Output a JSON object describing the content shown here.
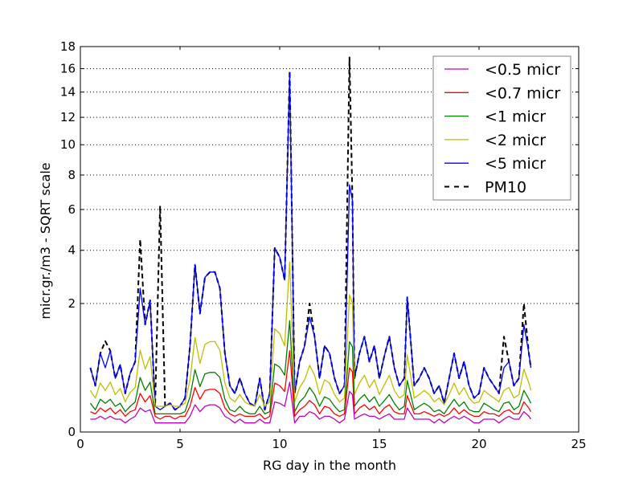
{
  "chart_data": {
    "type": "line",
    "title": "",
    "xlabel": "RG day in the month",
    "ylabel": "micr.gr./m3 - SQRT scale",
    "xlim": [
      0,
      25
    ],
    "ylim": [
      0,
      18
    ],
    "yscale": "sqrt",
    "grid": "y-dotted",
    "legend_position": "top-right",
    "xticks": [
      "0",
      "5",
      "10",
      "15",
      "20",
      "25"
    ],
    "yticks": [
      "0",
      "2",
      "4",
      "6",
      "8",
      "10",
      "12",
      "14",
      "16",
      "18"
    ],
    "x": [
      0.5,
      0.75,
      1,
      1.25,
      1.5,
      1.75,
      2,
      2.25,
      2.5,
      2.75,
      3,
      3.25,
      3.5,
      3.75,
      4,
      4.25,
      4.5,
      4.75,
      5,
      5.25,
      5.5,
      5.75,
      6,
      6.25,
      6.5,
      6.75,
      7,
      7.25,
      7.5,
      7.75,
      8,
      8.25,
      8.5,
      8.75,
      9,
      9.25,
      9.5,
      9.75,
      10,
      10.25,
      10.5,
      10.75,
      11,
      11.25,
      11.5,
      11.75,
      12,
      12.25,
      12.5,
      12.75,
      13,
      13.25,
      13.5,
      13.65,
      13.75,
      14,
      14.25,
      14.5,
      14.75,
      15,
      15.25,
      15.5,
      15.75,
      16,
      16.25,
      16.4,
      16.75,
      17,
      17.25,
      17.5,
      17.75,
      18,
      18.25,
      18.5,
      18.75,
      19,
      19.25,
      19.5,
      19.75,
      20,
      20.25,
      20.5,
      20.75,
      21,
      21.25,
      21.5,
      21.75,
      22,
      22.25,
      22.5,
      22.6
    ],
    "series": [
      {
        "name": "<0.5 micr",
        "color": "#bf00bf",
        "dash": false,
        "values": [
          0.02,
          0.02,
          0.03,
          0.02,
          0.03,
          0.02,
          0.02,
          0.01,
          0.02,
          0.03,
          0.07,
          0.05,
          0.06,
          0.01,
          0.01,
          0.01,
          0.01,
          0.01,
          0.01,
          0.01,
          0.03,
          0.09,
          0.05,
          0.08,
          0.09,
          0.09,
          0.07,
          0.03,
          0.02,
          0.01,
          0.02,
          0.01,
          0.01,
          0.01,
          0.02,
          0.01,
          0.01,
          0.11,
          0.1,
          0.08,
          0.3,
          0.01,
          0.03,
          0.03,
          0.05,
          0.04,
          0.02,
          0.03,
          0.03,
          0.02,
          0.01,
          0.02,
          0.2,
          0.17,
          0.02,
          0.03,
          0.04,
          0.03,
          0.03,
          0.02,
          0.03,
          0.04,
          0.02,
          0.02,
          0.02,
          0.07,
          0.02,
          0.02,
          0.02,
          0.02,
          0.01,
          0.02,
          0.01,
          0.02,
          0.03,
          0.02,
          0.03,
          0.02,
          0.01,
          0.01,
          0.02,
          0.02,
          0.02,
          0.01,
          0.02,
          0.03,
          0.02,
          0.02,
          0.05,
          0.03,
          0.02
        ]
      },
      {
        "name": "<0.7 micr",
        "color": "#ff0000",
        "dash": false,
        "values": [
          0.05,
          0.04,
          0.07,
          0.05,
          0.07,
          0.04,
          0.06,
          0.03,
          0.05,
          0.06,
          0.18,
          0.11,
          0.16,
          0.03,
          0.02,
          0.03,
          0.03,
          0.02,
          0.03,
          0.03,
          0.08,
          0.24,
          0.13,
          0.21,
          0.22,
          0.22,
          0.18,
          0.07,
          0.04,
          0.03,
          0.04,
          0.03,
          0.03,
          0.03,
          0.04,
          0.02,
          0.03,
          0.29,
          0.26,
          0.2,
          0.8,
          0.03,
          0.06,
          0.08,
          0.12,
          0.09,
          0.04,
          0.08,
          0.07,
          0.04,
          0.03,
          0.04,
          0.5,
          0.44,
          0.04,
          0.07,
          0.09,
          0.06,
          0.08,
          0.04,
          0.07,
          0.09,
          0.05,
          0.04,
          0.04,
          0.16,
          0.04,
          0.04,
          0.05,
          0.04,
          0.03,
          0.04,
          0.03,
          0.04,
          0.07,
          0.04,
          0.06,
          0.04,
          0.03,
          0.03,
          0.05,
          0.04,
          0.04,
          0.03,
          0.05,
          0.06,
          0.04,
          0.04,
          0.11,
          0.07,
          0.05
        ]
      },
      {
        "name": "<1 micr",
        "color": "#008000",
        "dash": false,
        "values": [
          0.1,
          0.06,
          0.13,
          0.1,
          0.13,
          0.08,
          0.1,
          0.05,
          0.08,
          0.11,
          0.36,
          0.21,
          0.3,
          0.04,
          0.04,
          0.04,
          0.04,
          0.04,
          0.04,
          0.05,
          0.15,
          0.47,
          0.25,
          0.41,
          0.43,
          0.43,
          0.36,
          0.13,
          0.06,
          0.05,
          0.08,
          0.05,
          0.04,
          0.04,
          0.08,
          0.04,
          0.05,
          0.56,
          0.51,
          0.39,
          1.5,
          0.05,
          0.11,
          0.15,
          0.24,
          0.17,
          0.08,
          0.15,
          0.13,
          0.08,
          0.05,
          0.06,
          0.99,
          0.88,
          0.08,
          0.13,
          0.17,
          0.11,
          0.15,
          0.08,
          0.12,
          0.17,
          0.1,
          0.06,
          0.08,
          0.32,
          0.06,
          0.08,
          0.1,
          0.08,
          0.05,
          0.06,
          0.04,
          0.08,
          0.13,
          0.08,
          0.11,
          0.06,
          0.05,
          0.05,
          0.1,
          0.08,
          0.06,
          0.05,
          0.1,
          0.11,
          0.06,
          0.08,
          0.21,
          0.13,
          0.1
        ]
      },
      {
        "name": "<2 micr",
        "color": "#bfbf00",
        "dash": false,
        "values": [
          0.21,
          0.14,
          0.29,
          0.21,
          0.3,
          0.17,
          0.23,
          0.11,
          0.19,
          0.24,
          0.81,
          0.48,
          0.69,
          0.08,
          0.08,
          0.08,
          0.09,
          0.08,
          0.08,
          0.1,
          0.33,
          1.08,
          0.57,
          0.93,
          0.99,
          0.99,
          0.81,
          0.29,
          0.14,
          0.11,
          0.17,
          0.11,
          0.09,
          0.08,
          0.17,
          0.08,
          0.11,
          1.29,
          1.17,
          0.9,
          3.5,
          0.11,
          0.24,
          0.33,
          0.54,
          0.39,
          0.17,
          0.33,
          0.29,
          0.17,
          0.11,
          0.14,
          2.28,
          2.01,
          0.17,
          0.29,
          0.39,
          0.24,
          0.33,
          0.17,
          0.27,
          0.39,
          0.21,
          0.14,
          0.17,
          0.72,
          0.14,
          0.17,
          0.21,
          0.17,
          0.11,
          0.14,
          0.09,
          0.17,
          0.29,
          0.17,
          0.24,
          0.14,
          0.1,
          0.11,
          0.21,
          0.17,
          0.14,
          0.11,
          0.21,
          0.24,
          0.14,
          0.17,
          0.48,
          0.29,
          0.21
        ]
      },
      {
        "name": "<5 micr",
        "color": "#0000ff",
        "dash": false,
        "values": [
          0.5,
          0.26,
          0.75,
          0.5,
          0.8,
          0.35,
          0.55,
          0.18,
          0.42,
          0.6,
          2.5,
          1.4,
          2.1,
          0.08,
          0.06,
          0.08,
          0.1,
          0.06,
          0.08,
          0.14,
          0.9,
          3.4,
          1.7,
          2.9,
          3.1,
          3.1,
          2.5,
          0.75,
          0.26,
          0.18,
          0.35,
          0.18,
          0.1,
          0.08,
          0.35,
          0.06,
          0.18,
          4.1,
          3.7,
          2.8,
          15.5,
          0.18,
          0.6,
          0.9,
          1.6,
          1.1,
          0.35,
          0.9,
          0.75,
          0.35,
          0.18,
          0.26,
          7.4,
          6.5,
          0.35,
          0.75,
          1.1,
          0.6,
          0.9,
          0.35,
          0.7,
          1.1,
          0.5,
          0.26,
          0.35,
          2.2,
          0.26,
          0.35,
          0.5,
          0.35,
          0.18,
          0.26,
          0.1,
          0.35,
          0.75,
          0.35,
          0.6,
          0.26,
          0.14,
          0.18,
          0.5,
          0.35,
          0.26,
          0.18,
          0.5,
          0.6,
          0.26,
          0.35,
          1.4,
          0.75,
          0.5
        ]
      },
      {
        "name": "PM10",
        "color": "#000000",
        "dash": true,
        "values": [
          0.5,
          0.26,
          0.75,
          1.0,
          0.8,
          0.35,
          0.55,
          0.18,
          0.42,
          0.6,
          4.5,
          1.4,
          2.1,
          0.08,
          6.2,
          0.08,
          0.1,
          0.06,
          0.08,
          0.14,
          0.9,
          3.4,
          1.7,
          2.9,
          3.1,
          3.1,
          2.5,
          0.75,
          0.26,
          0.18,
          0.35,
          0.18,
          0.1,
          0.08,
          0.35,
          0.06,
          0.18,
          4.1,
          3.7,
          2.8,
          15.8,
          0.18,
          0.6,
          0.9,
          2.0,
          1.1,
          0.35,
          0.9,
          0.75,
          0.35,
          0.18,
          0.26,
          17,
          6.5,
          0.35,
          0.75,
          1.1,
          0.6,
          0.9,
          0.35,
          0.7,
          1.1,
          0.5,
          0.26,
          0.35,
          2.2,
          0.26,
          0.35,
          0.5,
          0.35,
          0.18,
          0.26,
          0.1,
          0.35,
          0.75,
          0.35,
          0.6,
          0.26,
          0.14,
          0.18,
          0.5,
          0.35,
          0.26,
          0.18,
          1.1,
          0.6,
          0.26,
          0.35,
          2.0,
          0.75,
          0.5
        ]
      }
    ]
  }
}
